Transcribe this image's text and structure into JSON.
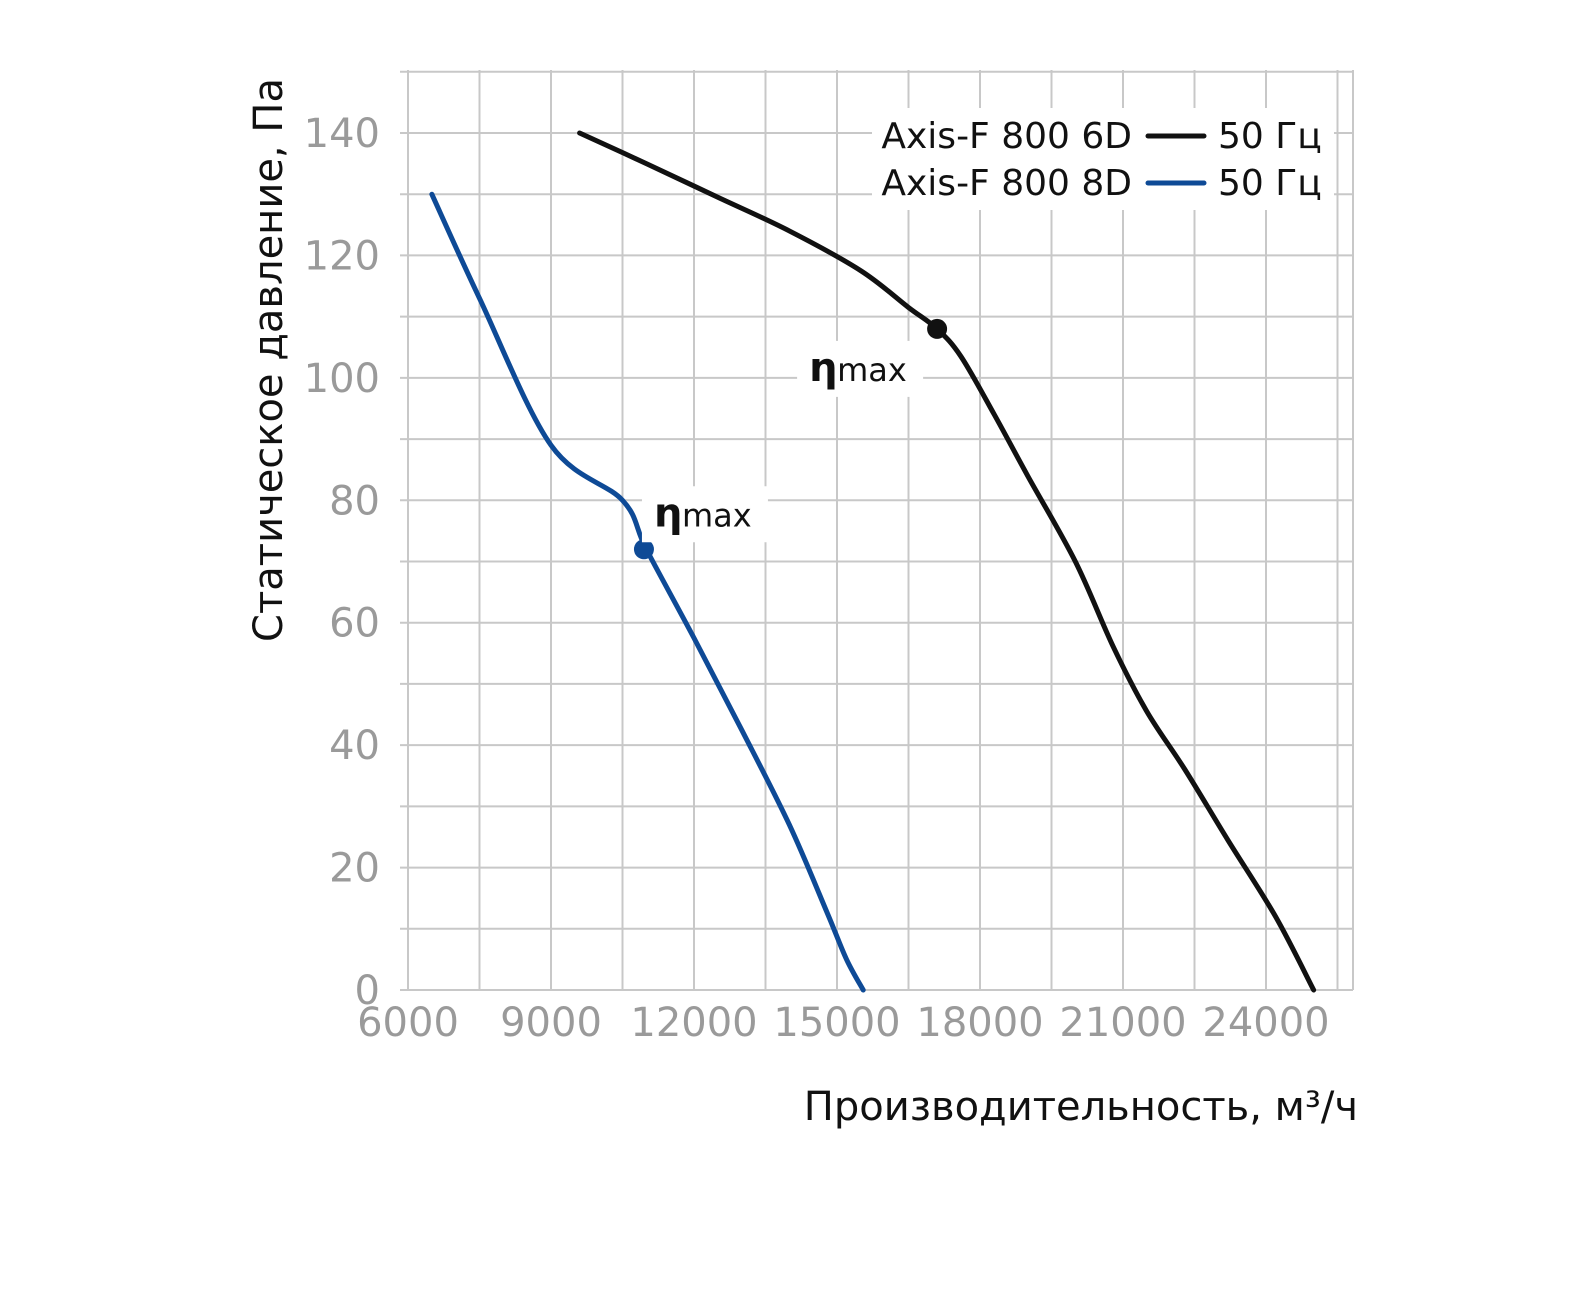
{
  "chart_data": {
    "type": "line",
    "xlabel": "Производительность, м³/ч",
    "ylabel": "Статическое давление, Па",
    "xlim": [
      6000,
      26000
    ],
    "ylim": [
      0,
      150
    ],
    "x_ticks": [
      "6000",
      "9000",
      "12000",
      "15000",
      "18000",
      "21000",
      "24000"
    ],
    "y_ticks": [
      "0",
      "20",
      "40",
      "60",
      "80",
      "100",
      "120",
      "140"
    ],
    "grid": true,
    "legend_position": "top-right",
    "series": [
      {
        "name": "Axis-F 800 6D",
        "legend_suffix": "50 Гц",
        "color": "#111111",
        "x": [
          9600,
          11000,
          12500,
          14000,
          15500,
          16500,
          17100,
          17600,
          18300,
          19000,
          20000,
          20800,
          21500,
          22300,
          23200,
          24200,
          25000
        ],
        "y": [
          140,
          135,
          129.5,
          124,
          117.5,
          111.5,
          108,
          103.5,
          94,
          84,
          70,
          56,
          45.5,
          36,
          24.5,
          12,
          0
        ],
        "eta_max": {
          "x": 17100,
          "y": 108,
          "label_symbol": "η",
          "label_sub": "max"
        }
      },
      {
        "name": "Axis-F 800 8D",
        "legend_suffix": "50 Гц",
        "color": "#0e4a96",
        "x": [
          6500,
          7500,
          9000,
          10500,
          11000,
          12000,
          13000,
          14000,
          14800,
          15200,
          15550
        ],
        "y": [
          130,
          113,
          89,
          80,
          72,
          57.5,
          42.5,
          27,
          12.5,
          5,
          0
        ],
        "eta_max": {
          "x": 10950,
          "y": 72,
          "label_symbol": "η",
          "label_sub": "max"
        }
      }
    ]
  }
}
